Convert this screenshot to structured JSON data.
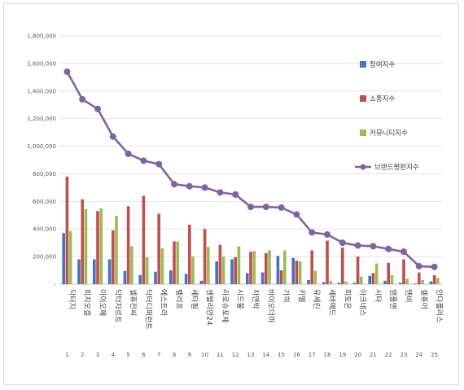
{
  "chart_data": {
    "type": "bar",
    "ylim": [
      0,
      1800000
    ],
    "yticks": [
      0,
      200000,
      400000,
      600000,
      800000,
      1000000,
      1200000,
      1400000,
      1600000,
      1800000
    ],
    "ytick_labels": [
      "-",
      "200,000",
      "400,000",
      "600,000",
      "800,000",
      "1,000,000",
      "1,200,000",
      "1,400,000",
      "1,600,000",
      "1,800,000"
    ],
    "categories": [
      "닥터지",
      "피지오겔",
      "아이오페",
      "닥터자르트",
      "셀퓨전씨",
      "닥터디퍼런트",
      "에스트라",
      "벨리프",
      "세타필",
      "센텔리안24",
      "라로슈포제",
      "시드물",
      "차앤박",
      "바이오더마",
      "가히",
      "키엘",
      "유세린",
      "세바메드",
      "피토온",
      "아크네스",
      "시타",
      "앰플엔",
      "엔비",
      "셀퓨어",
      "안다플러스"
    ],
    "indices": [
      "1",
      "2",
      "3",
      "4",
      "5",
      "6",
      "7",
      "8",
      "9",
      "10",
      "11",
      "12",
      "13",
      "14",
      "15",
      "16",
      "17",
      "18",
      "19",
      "20",
      "21",
      "22",
      "23",
      "24",
      "25"
    ],
    "series": [
      {
        "name": "참여지수",
        "kind": "bar",
        "color": "#4472c4",
        "values": [
          370000,
          180000,
          180000,
          180000,
          95000,
          65000,
          90000,
          100000,
          75000,
          25000,
          165000,
          180000,
          80000,
          85000,
          205000,
          190000,
          30000,
          15000,
          10000,
          10000,
          60000,
          25000,
          10000,
          5000,
          20000
        ]
      },
      {
        "name": "소통지수",
        "kind": "bar",
        "color": "#c0504d",
        "values": [
          780000,
          615000,
          530000,
          390000,
          565000,
          640000,
          510000,
          310000,
          430000,
          400000,
          285000,
          195000,
          235000,
          225000,
          100000,
          170000,
          245000,
          315000,
          265000,
          200000,
          80000,
          155000,
          180000,
          85000,
          65000
        ]
      },
      {
        "name": "커뮤니티지수",
        "kind": "bar",
        "color": "#9bbb59",
        "values": [
          385000,
          545000,
          550000,
          495000,
          275000,
          195000,
          260000,
          310000,
          200000,
          270000,
          200000,
          275000,
          240000,
          245000,
          245000,
          165000,
          95000,
          25000,
          20000,
          55000,
          150000,
          65000,
          40000,
          30000,
          45000
        ]
      },
      {
        "name": "브랜드평판지수",
        "kind": "line",
        "color": "#8064a2",
        "values": [
          1540000,
          1340000,
          1270000,
          1070000,
          945000,
          895000,
          870000,
          725000,
          710000,
          700000,
          665000,
          650000,
          560000,
          560000,
          555000,
          505000,
          375000,
          360000,
          300000,
          280000,
          275000,
          255000,
          235000,
          130000,
          125000
        ]
      }
    ]
  }
}
